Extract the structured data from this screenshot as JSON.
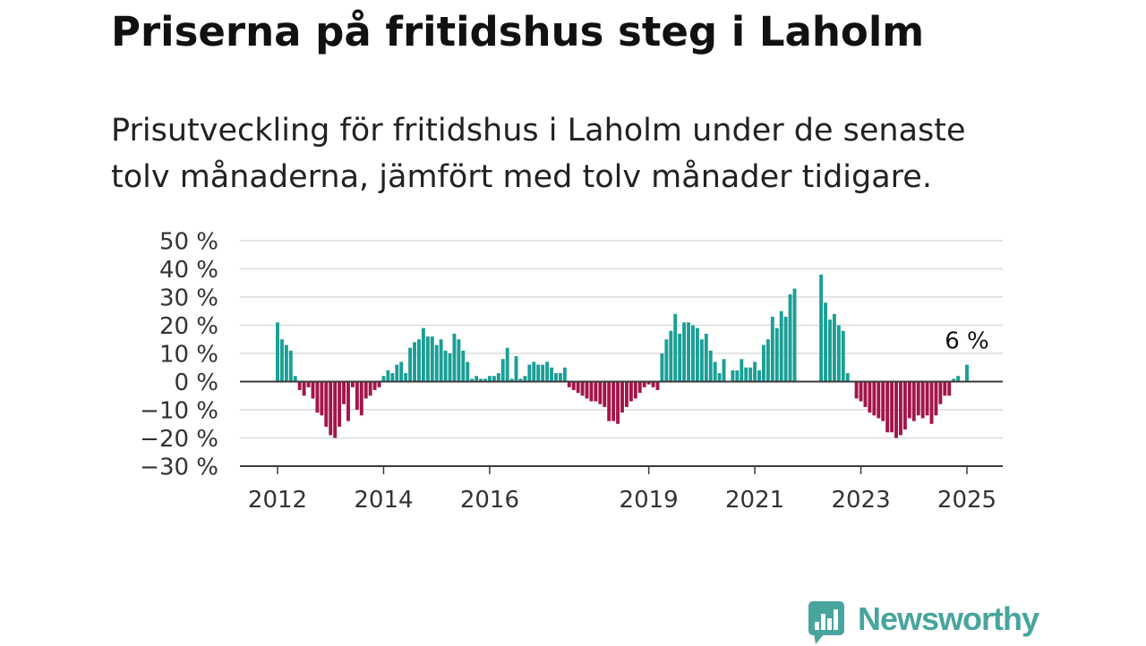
{
  "colors": {
    "positive": "#1a9f95",
    "negative": "#a3154b",
    "title": "#111111",
    "text": "#222222",
    "tick_text": "#333333",
    "grid": "#dcdcdc",
    "axis": "#3a3a3a",
    "brand": "#47a59d"
  },
  "chart_data": {
    "type": "bar",
    "title": "Priserna på fritidshus steg i Laholm",
    "subtitle": "Prisutveckling för fritidshus i Laholm under de senaste tolv månaderna, jämfört med tolv månader tidigare.",
    "ylim": [
      -30,
      50
    ],
    "yticks": [
      50,
      40,
      30,
      20,
      10,
      0,
      -10,
      -20,
      -30
    ],
    "ytick_labels": [
      "50 %",
      "40 %",
      "30 %",
      "20 %",
      "10 %",
      "0 %",
      "−10 %",
      "−20 %",
      "−30 %"
    ],
    "xticks": [
      "2012-01",
      "2014-01",
      "2016-01",
      "2019-01",
      "2021-01",
      "2023-01",
      "2025-01"
    ],
    "xtick_labels": [
      "2012",
      "2014",
      "2016",
      "2019",
      "2021",
      "2023",
      "2025"
    ],
    "grid": true,
    "x": [
      "2012-01",
      "2012-02",
      "2012-03",
      "2012-04",
      "2012-05",
      "2012-06",
      "2012-07",
      "2012-08",
      "2012-09",
      "2012-10",
      "2012-11",
      "2012-12",
      "2013-01",
      "2013-02",
      "2013-03",
      "2013-04",
      "2013-05",
      "2013-06",
      "2013-07",
      "2013-08",
      "2013-09",
      "2013-10",
      "2013-11",
      "2013-12",
      "2014-01",
      "2014-02",
      "2014-03",
      "2014-04",
      "2014-05",
      "2014-06",
      "2014-07",
      "2014-08",
      "2014-09",
      "2014-10",
      "2014-11",
      "2014-12",
      "2015-01",
      "2015-02",
      "2015-03",
      "2015-04",
      "2015-05",
      "2015-06",
      "2015-07",
      "2015-08",
      "2015-09",
      "2015-10",
      "2015-11",
      "2015-12",
      "2016-01",
      "2016-02",
      "2016-03",
      "2016-04",
      "2016-05",
      "2016-06",
      "2016-07",
      "2016-08",
      "2016-09",
      "2016-10",
      "2016-11",
      "2016-12",
      "2017-01",
      "2017-02",
      "2017-03",
      "2017-04",
      "2017-05",
      "2017-06",
      "2017-07",
      "2017-08",
      "2017-09",
      "2017-10",
      "2017-11",
      "2017-12",
      "2018-01",
      "2018-02",
      "2018-03",
      "2018-04",
      "2018-05",
      "2018-06",
      "2018-07",
      "2018-08",
      "2018-09",
      "2018-10",
      "2018-11",
      "2018-12",
      "2019-01",
      "2019-02",
      "2019-03",
      "2019-04",
      "2019-05",
      "2019-06",
      "2019-07",
      "2019-08",
      "2019-09",
      "2019-10",
      "2019-11",
      "2019-12",
      "2020-01",
      "2020-02",
      "2020-03",
      "2020-04",
      "2020-05",
      "2020-06",
      "2020-07",
      "2020-08",
      "2020-09",
      "2020-10",
      "2020-11",
      "2020-12",
      "2021-01",
      "2021-02",
      "2021-03",
      "2021-04",
      "2021-05",
      "2021-06",
      "2021-07",
      "2021-08",
      "2021-09",
      "2021-10",
      "2021-11",
      "2021-12",
      "2022-01",
      "2022-02",
      "2022-03",
      "2022-04",
      "2022-05",
      "2022-06",
      "2022-07",
      "2022-08",
      "2022-09",
      "2022-10",
      "2022-11",
      "2022-12",
      "2023-01",
      "2023-02",
      "2023-03",
      "2023-04",
      "2023-05",
      "2023-06",
      "2023-07",
      "2023-08",
      "2023-09",
      "2023-10",
      "2023-11",
      "2023-12",
      "2024-01",
      "2024-02",
      "2024-03",
      "2024-04",
      "2024-05",
      "2024-06",
      "2024-07",
      "2024-08",
      "2024-09",
      "2024-10",
      "2024-11",
      "2024-12",
      "2025-01"
    ],
    "values": [
      21,
      15,
      13,
      11,
      2,
      -3,
      -5,
      -2,
      -6,
      -11,
      -12,
      -16,
      -19,
      -20,
      -16,
      -8,
      -14,
      -2,
      -10,
      -12,
      -6,
      -5,
      -3,
      -2,
      2,
      4,
      3,
      6,
      7,
      3,
      12,
      14,
      15,
      19,
      16,
      16,
      13,
      15,
      11,
      10,
      17,
      15,
      11,
      7,
      1,
      2,
      1,
      1,
      2,
      2,
      3,
      8,
      12,
      1,
      9,
      1,
      2,
      6,
      7,
      6,
      6,
      7,
      5,
      3,
      3,
      5,
      -2,
      -3,
      -4,
      -5,
      -6,
      -7,
      -7,
      -8,
      -9,
      -14,
      -14,
      -15,
      -11,
      -9,
      -7,
      -6,
      -4,
      -2,
      -1,
      -2,
      -3,
      10,
      15,
      18,
      24,
      17,
      21,
      21,
      20,
      19,
      15,
      17,
      11,
      7,
      3,
      8,
      null,
      4,
      4,
      8,
      5,
      5,
      7,
      4,
      13,
      15,
      23,
      19,
      25,
      23,
      31,
      33,
      null,
      null,
      null,
      null,
      null,
      38,
      28,
      22,
      24,
      20,
      18,
      3,
      null,
      -6,
      -7,
      -9,
      -11,
      -12,
      -13,
      -14,
      -18,
      -18,
      -20,
      -19,
      -17,
      -13,
      -14,
      -12,
      -13,
      -12,
      -15,
      -12,
      -8,
      -5,
      -5,
      1,
      2,
      null,
      6
    ],
    "annotations": [
      {
        "text": "6 %",
        "x": "2025-01",
        "y": 6
      }
    ]
  },
  "brand": {
    "name": "Newsworthy",
    "icon": "newsworthy-logo-icon"
  }
}
